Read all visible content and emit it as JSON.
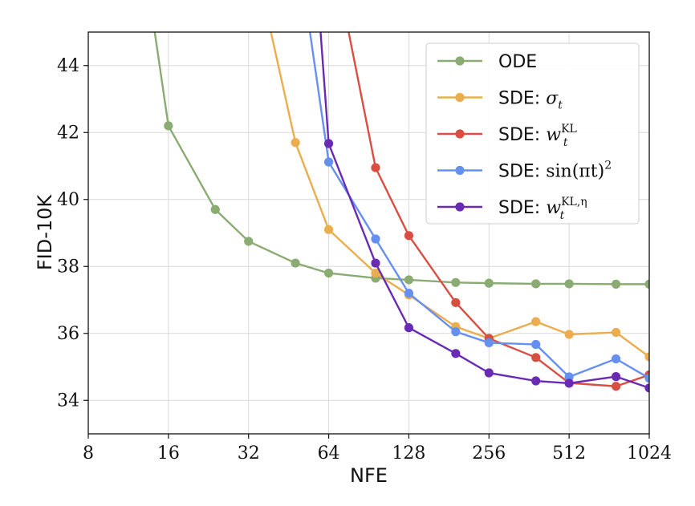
{
  "chart_data": {
    "type": "line",
    "xlabel": "NFE",
    "ylabel": "FID-10K",
    "xscale": "log2",
    "xlim": [
      8,
      1024
    ],
    "ylim": [
      33,
      45
    ],
    "xticks": [
      8,
      16,
      32,
      64,
      128,
      256,
      512,
      1024
    ],
    "xtick_labels": [
      "8",
      "16",
      "32",
      "64",
      "128",
      "256",
      "512",
      "1024"
    ],
    "yticks": [
      34,
      36,
      38,
      40,
      42,
      44
    ],
    "ytick_labels": [
      "34",
      "36",
      "38",
      "40",
      "42",
      "44"
    ],
    "grid": true,
    "legend_position": "top-right",
    "series": [
      {
        "name": "ODE",
        "legend": {
          "prefix": "ODE",
          "math": "",
          "sup": "",
          "rest": ""
        },
        "color": "#8aab72",
        "x": [
          12,
          16,
          24,
          32,
          48,
          64,
          96,
          128,
          192,
          256,
          384,
          512,
          768,
          1024
        ],
        "y": [
          49.0,
          42.2,
          39.7,
          38.75,
          38.1,
          37.8,
          37.65,
          37.6,
          37.52,
          37.5,
          37.48,
          37.48,
          37.47,
          37.47
        ]
      },
      {
        "name": "SDE: σt",
        "legend": {
          "prefix": "SDE: ",
          "math": "σ",
          "sub": "t",
          "sup": "",
          "rest": ""
        },
        "color": "#ebad4e",
        "x": [
          32,
          48,
          64,
          96,
          128,
          192,
          256,
          384,
          512,
          768,
          1024
        ],
        "y": [
          48.0,
          41.7,
          39.1,
          37.8,
          37.15,
          36.2,
          35.85,
          36.35,
          35.97,
          36.03,
          35.3
        ]
      },
      {
        "name": "SDE: wt^KL",
        "legend": {
          "prefix": "SDE: ",
          "math": "w",
          "sub": "t",
          "sup": "KL",
          "rest": ""
        },
        "color": "#d94e43",
        "x": [
          64,
          96,
          128,
          192,
          256,
          384,
          512,
          768,
          1024
        ],
        "y": [
          48.0,
          40.95,
          38.92,
          36.92,
          35.85,
          35.28,
          34.52,
          34.42,
          34.76
        ]
      },
      {
        "name": "SDE: sin(πt)^2",
        "legend": {
          "prefix": "SDE: ",
          "math": "",
          "sub": "",
          "sup": "2",
          "rest": "sin(πt)"
        },
        "color": "#6590f0",
        "x": [
          48,
          64,
          96,
          128,
          192,
          256,
          384,
          512,
          768,
          1024
        ],
        "y": [
          48.0,
          41.12,
          38.82,
          37.2,
          36.05,
          35.72,
          35.67,
          34.7,
          35.24,
          34.66
        ]
      },
      {
        "name": "SDE: wt^KL,η",
        "legend": {
          "prefix": "SDE: ",
          "math": "w",
          "sub": "t",
          "sup": "KL,η",
          "rest": ""
        },
        "color": "#6a2bb4",
        "x": [
          56,
          64,
          96,
          128,
          192,
          256,
          384,
          512,
          768,
          1024
        ],
        "y": [
          48.0,
          41.67,
          38.1,
          36.17,
          35.4,
          34.82,
          34.58,
          34.51,
          34.71,
          34.37
        ]
      }
    ]
  }
}
